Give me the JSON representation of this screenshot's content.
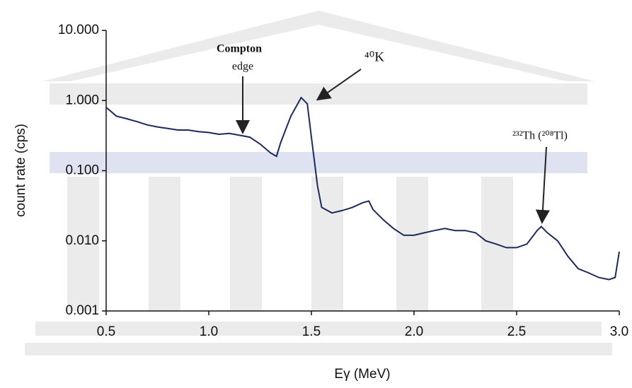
{
  "chart_data": {
    "type": "line",
    "xlabel": "Eγ (MeV)",
    "ylabel": "count rate (cps)",
    "yscale": "log",
    "grid": false,
    "xlim": [
      0.5,
      3.0
    ],
    "xticks": [
      0.5,
      {
        "value": 1,
        "label": "1.0"
      },
      1.5,
      {
        "value": 2,
        "label": "2.0"
      },
      2.5,
      {
        "value": 3,
        "label": "3.0"
      }
    ],
    "ylim": [
      0.001,
      10
    ],
    "yticks": [
      {
        "value": 10,
        "label": "10.000"
      },
      {
        "value": 1,
        "label": "1.000"
      },
      {
        "value": 0.1,
        "label": "0.100"
      },
      {
        "value": 0.01,
        "label": "0.010"
      },
      {
        "value": 0.001,
        "label": "0.001"
      }
    ],
    "annotations": [
      "Compton",
      "edge",
      "⁴⁰K",
      "²³²Th (²⁰⁸Tl)"
    ],
    "series": [
      {
        "color": "#1c2a5c",
        "x": [
          0.5,
          0.55,
          0.6,
          0.65,
          0.7,
          0.75,
          0.8,
          0.85,
          0.9,
          0.95,
          1.0,
          1.05,
          1.1,
          1.15,
          1.2,
          1.25,
          1.3,
          1.33,
          1.35,
          1.4,
          1.45,
          1.48,
          1.5,
          1.53,
          1.55,
          1.6,
          1.65,
          1.7,
          1.75,
          1.78,
          1.8,
          1.85,
          1.9,
          1.95,
          2.0,
          2.05,
          2.1,
          2.15,
          2.2,
          2.25,
          2.3,
          2.35,
          2.4,
          2.45,
          2.5,
          2.55,
          2.6,
          2.62,
          2.65,
          2.7,
          2.75,
          2.8,
          2.85,
          2.9,
          2.95,
          2.98,
          3.0
        ],
        "values": [
          0.8,
          0.6,
          0.55,
          0.5,
          0.45,
          0.42,
          0.4,
          0.38,
          0.38,
          0.36,
          0.35,
          0.33,
          0.34,
          0.32,
          0.3,
          0.24,
          0.18,
          0.16,
          0.25,
          0.6,
          1.1,
          0.9,
          0.3,
          0.06,
          0.03,
          0.025,
          0.027,
          0.03,
          0.035,
          0.037,
          0.028,
          0.02,
          0.015,
          0.012,
          0.012,
          0.013,
          0.014,
          0.015,
          0.014,
          0.014,
          0.013,
          0.01,
          0.009,
          0.008,
          0.008,
          0.009,
          0.014,
          0.016,
          0.013,
          0.01,
          0.006,
          0.004,
          0.0035,
          0.003,
          0.0028,
          0.003,
          0.007
        ]
      }
    ]
  }
}
